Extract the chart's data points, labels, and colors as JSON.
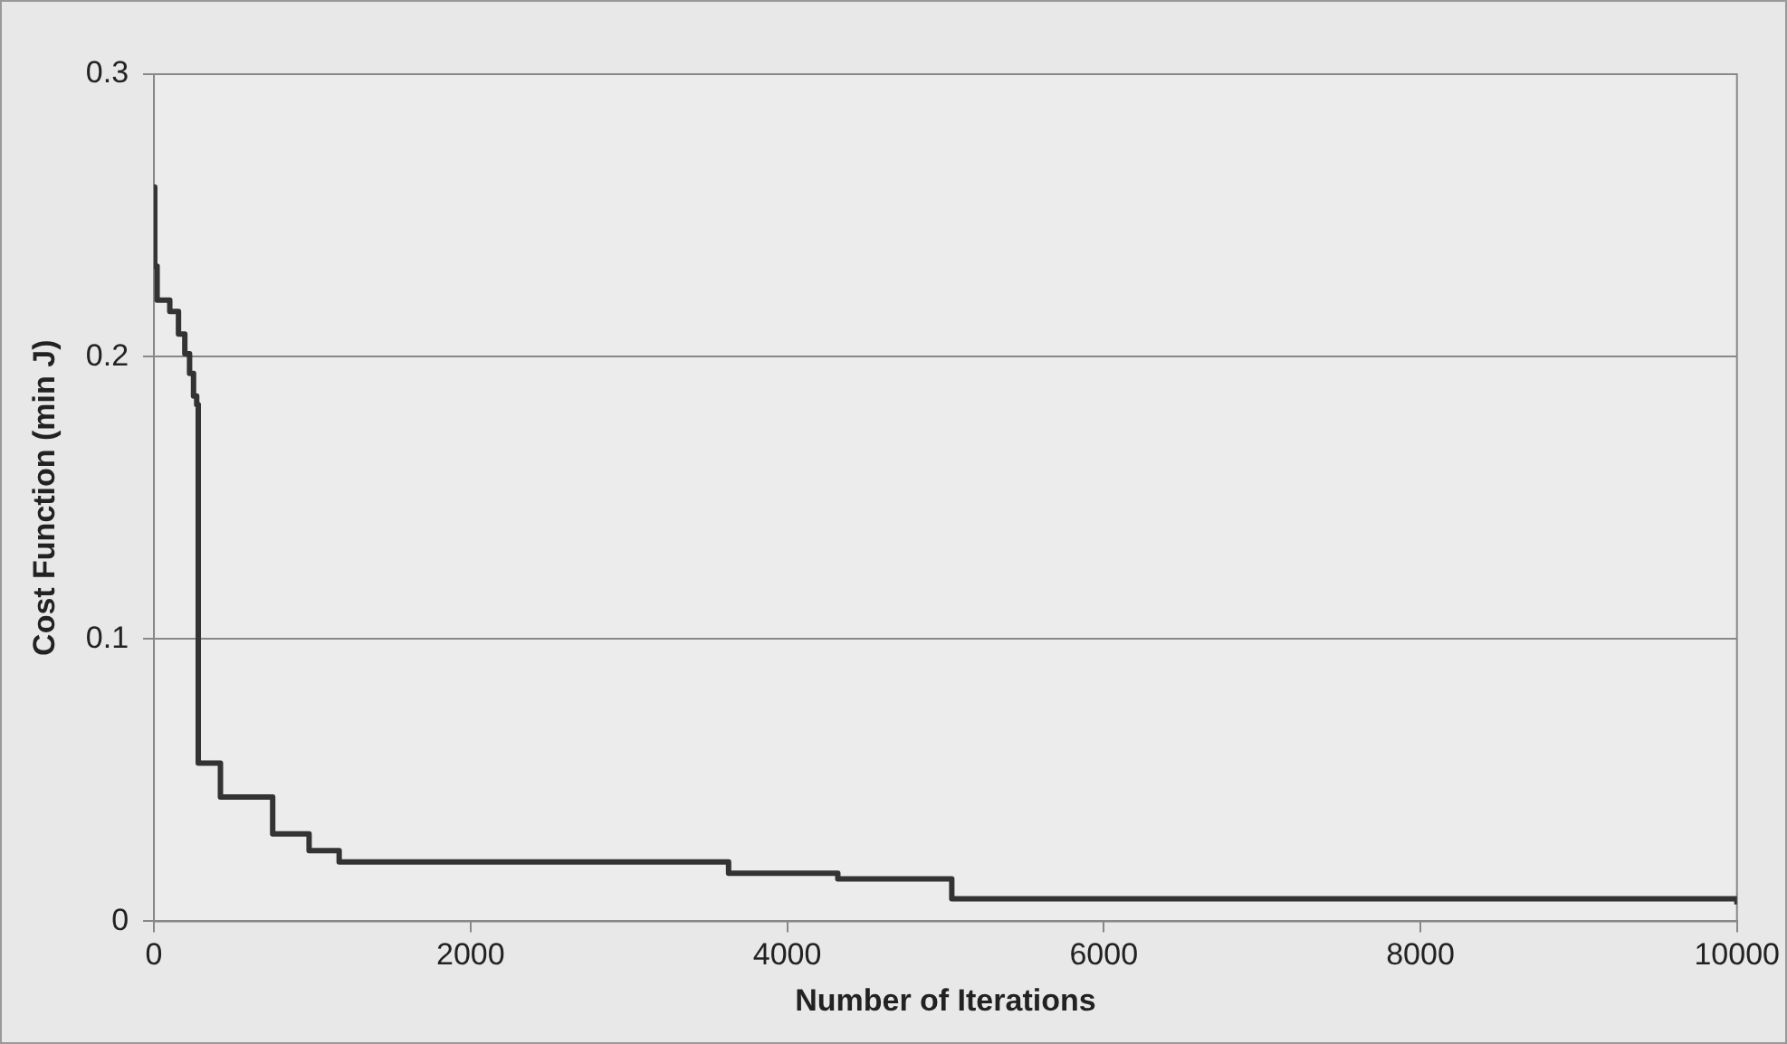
{
  "chart_data": {
    "type": "step",
    "xlabel": "Number of Iterations",
    "ylabel": "Cost Function (min J)",
    "x": [
      0,
      5,
      20,
      100,
      155,
      195,
      225,
      250,
      270,
      280,
      420,
      750,
      980,
      1170,
      3630,
      4320,
      5040,
      9950,
      10000
    ],
    "series": [
      {
        "color": "#333333",
        "values": [
          0.26,
          0.232,
          0.22,
          0.216,
          0.208,
          0.201,
          0.194,
          0.186,
          0.183,
          0.056,
          0.044,
          0.031,
          0.025,
          0.021,
          0.017,
          0.015,
          0.008,
          0.008,
          0.006
        ]
      }
    ],
    "xlim": [
      0,
      10000
    ],
    "xticks": [
      0,
      2000,
      4000,
      6000,
      8000,
      10000
    ],
    "ylim": [
      0,
      0.3
    ],
    "yticks": [
      0,
      0.1,
      0.2,
      0.3
    ],
    "grid": "y",
    "legend": false,
    "marker": "none",
    "line_style": "solid"
  }
}
